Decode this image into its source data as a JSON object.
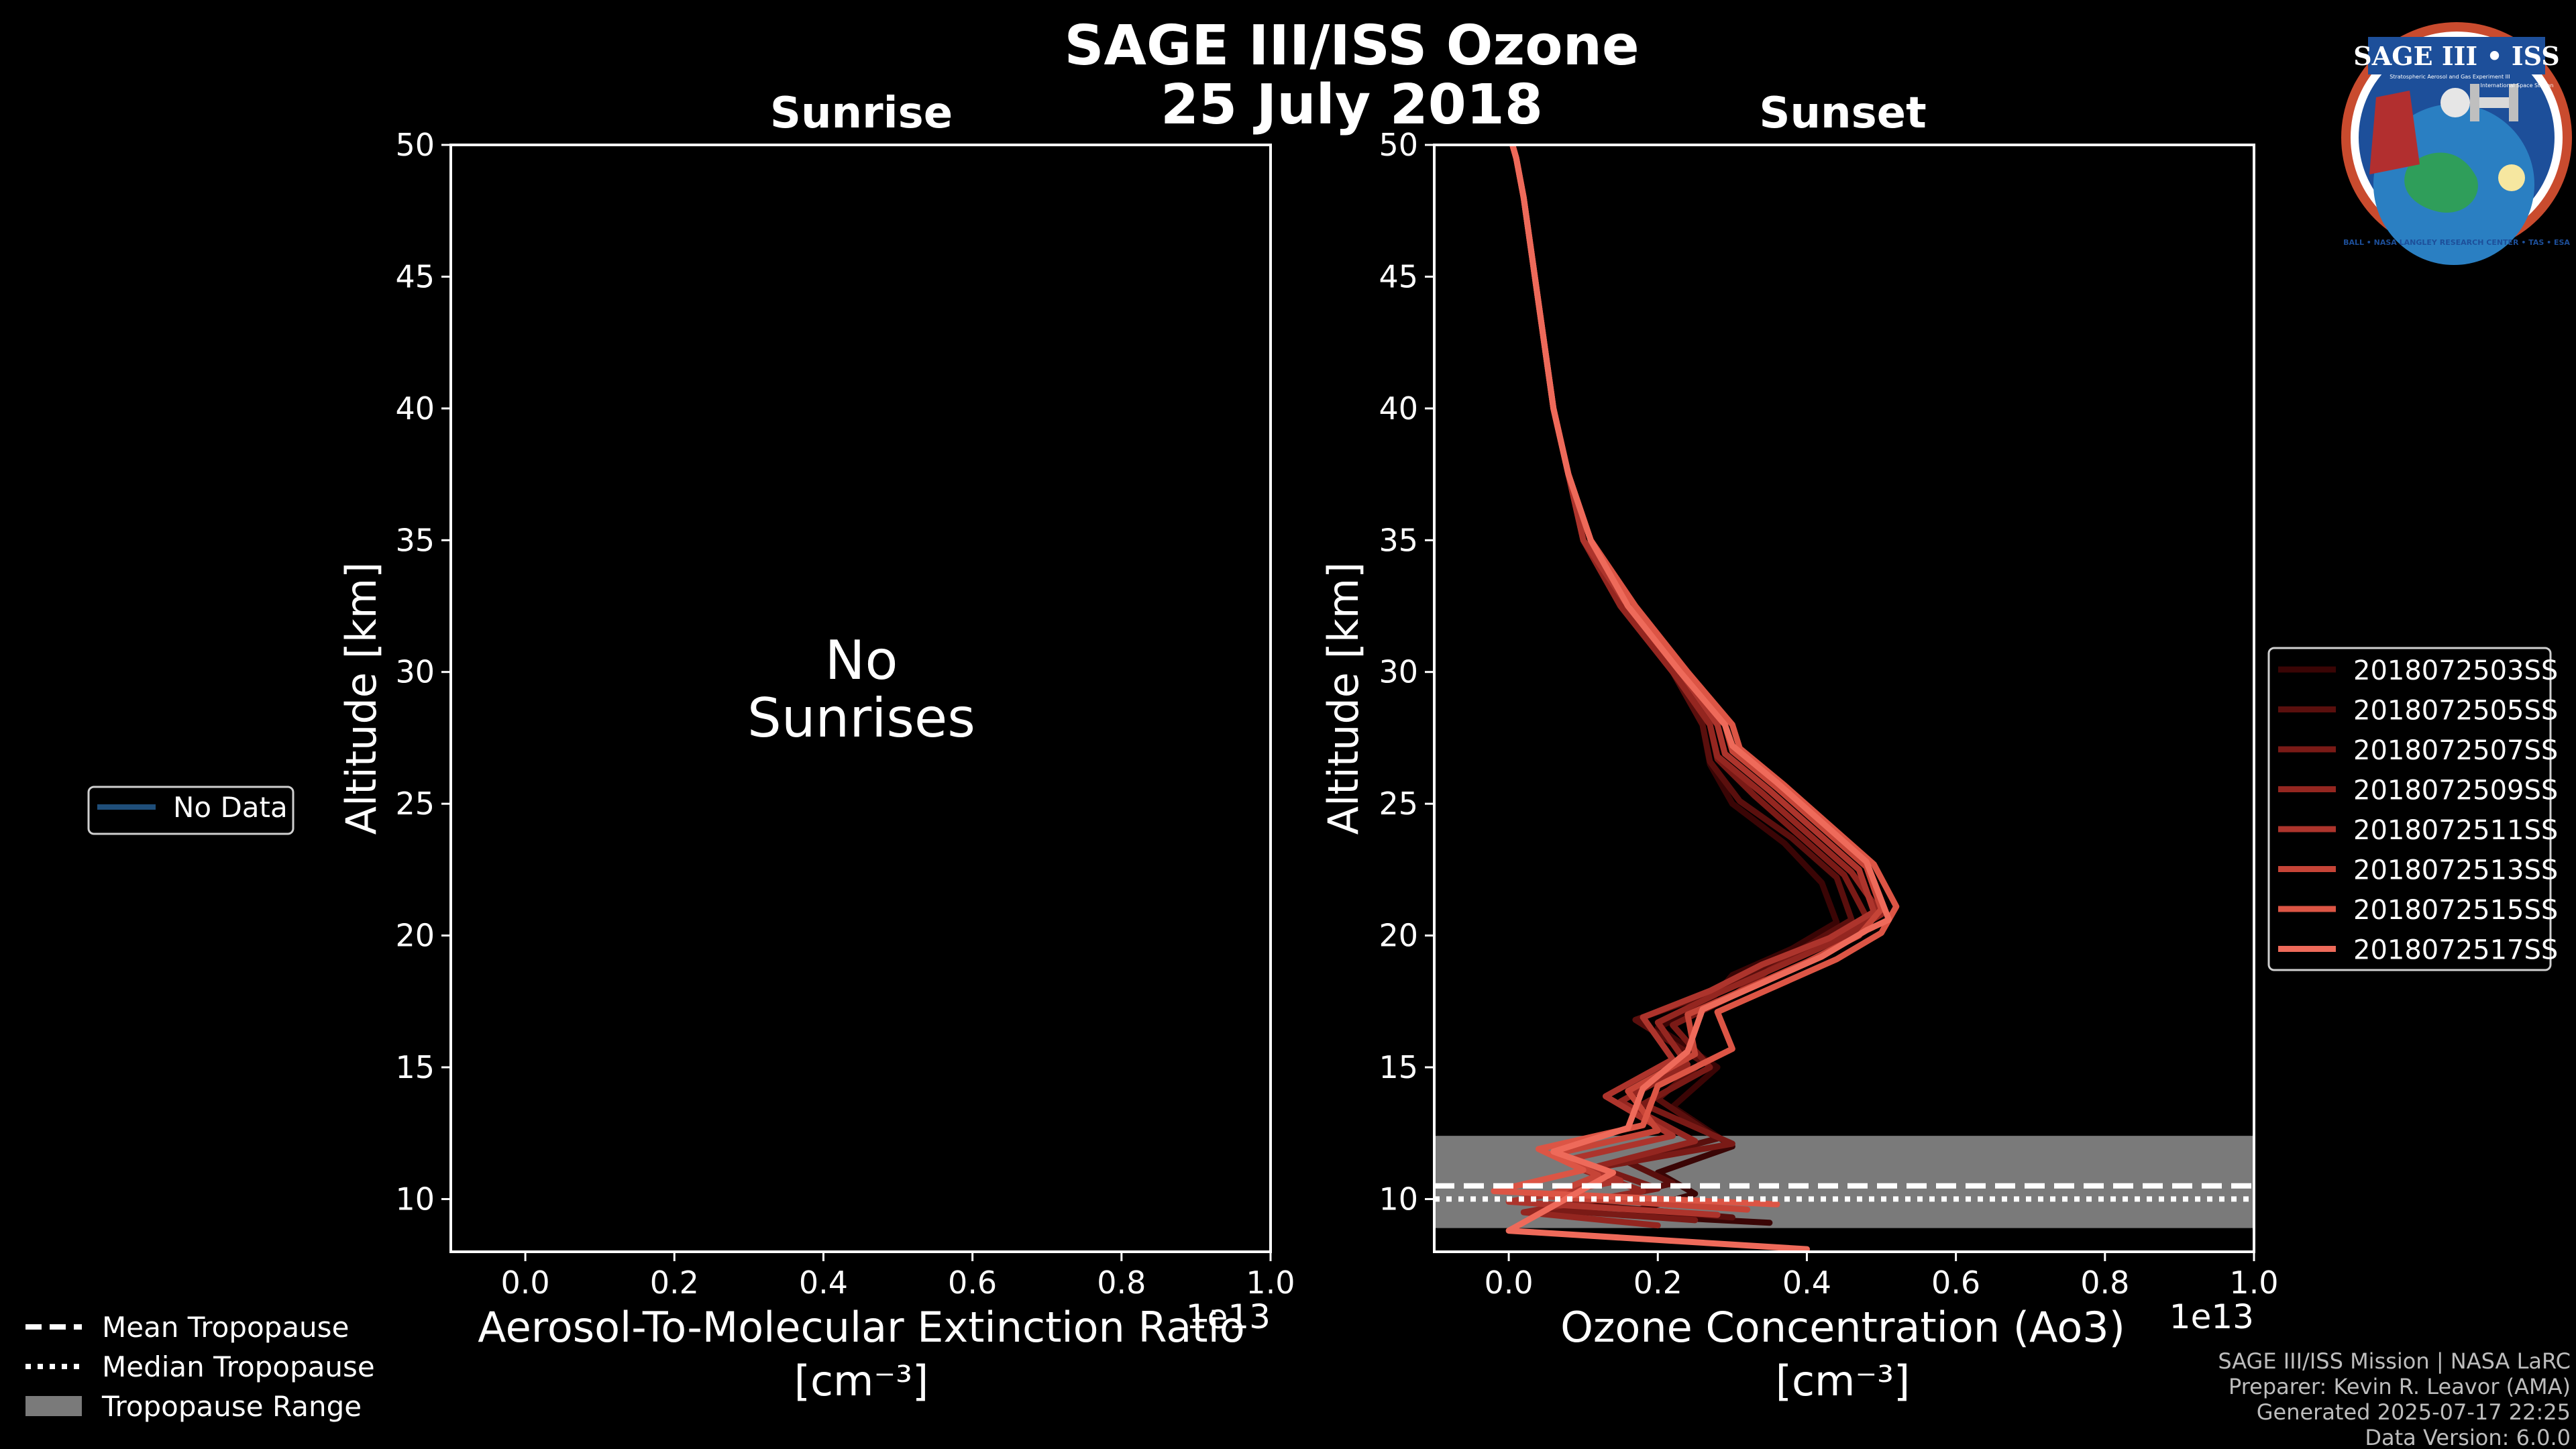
{
  "figure": {
    "title_line1": "SAGE III/ISS Ozone",
    "title_line2": "25 July 2018",
    "exponent_label": "1e13",
    "unit_label": "[cm⁻³]",
    "background": "#000000",
    "foreground": "#ffffff"
  },
  "logo": {
    "text": "SAGE III • ISS",
    "subtitle": "Stratospheric Aerosol and Gas Experiment III",
    "right_caption": "International Space Station",
    "ring_text": "BALL • NASA LANGLEY RESEARCH CENTER • TAS • ESA"
  },
  "left_legend": {
    "no_data_label": "No Data",
    "no_data_color": "#1f4e79"
  },
  "tropopause_legend": {
    "mean_label": "Mean Tropopause",
    "median_label": "Median Tropopause",
    "range_label": "Tropopause Range",
    "range_color": "#7a7a7a"
  },
  "credits": {
    "line1": "SAGE III/ISS Mission | NASA LaRC",
    "line2": "Preparer: Kevin R. Leavor (AMA)",
    "line3": "Generated 2025-07-17 22:25",
    "line4": "Data Version: 6.0.0"
  },
  "chart_data": [
    {
      "type": "line",
      "panel": "sunrise",
      "title": "Sunrise",
      "xlabel": "Aerosol-To-Molecular Extinction Ratio",
      "ylabel": "Altitude [km]",
      "xlim": [
        -0.1,
        1.0
      ],
      "ylim": [
        8,
        50
      ],
      "xticks": [
        0.0,
        0.2,
        0.4,
        0.6,
        0.8,
        1.0
      ],
      "xtick_labels": [
        "0.0",
        "0.2",
        "0.4",
        "0.6",
        "0.8",
        "1.0"
      ],
      "yticks": [
        10,
        15,
        20,
        25,
        30,
        35,
        40,
        45,
        50
      ],
      "ytick_labels": [
        "10",
        "15",
        "20",
        "25",
        "30",
        "35",
        "40",
        "45",
        "50"
      ],
      "x_scale": "1e13",
      "message_line1": "No",
      "message_line2": "Sunrises",
      "series": []
    },
    {
      "type": "line",
      "panel": "sunset",
      "title": "Sunset",
      "xlabel": "Ozone Concentration (Ao3)",
      "ylabel": "Altitude [km]",
      "xlim": [
        -0.1,
        1.0
      ],
      "ylim": [
        8,
        50
      ],
      "xticks": [
        0.0,
        0.2,
        0.4,
        0.6,
        0.8,
        1.0
      ],
      "xtick_labels": [
        "0.0",
        "0.2",
        "0.4",
        "0.6",
        "0.8",
        "1.0"
      ],
      "yticks": [
        10,
        15,
        20,
        25,
        30,
        35,
        40,
        45,
        50
      ],
      "ytick_labels": [
        "10",
        "15",
        "20",
        "25",
        "30",
        "35",
        "40",
        "45",
        "50"
      ],
      "x_scale": "1e13",
      "tropopause": {
        "mean": 10.5,
        "median": 10.0,
        "range": [
          8.9,
          12.4
        ]
      },
      "series": [
        {
          "name": "2018072503SS",
          "color": "#3a0505",
          "x": [
            0.35,
            0.15,
            0.25,
            0.2,
            0.3,
            0.22,
            0.28,
            0.2,
            0.27,
            0.3,
            0.38,
            0.44,
            0.42,
            0.37,
            0.3,
            0.27,
            0.26,
            0.22,
            0.15,
            0.1,
            0.08,
            0.06,
            0.05,
            0.04,
            0.03,
            0.02,
            0.01,
            0.005
          ],
          "y": [
            9.1,
            9.4,
            10.2,
            11.0,
            12.0,
            13.5,
            15.0,
            16.5,
            17.5,
            18.5,
            19.5,
            20.5,
            22.0,
            23.5,
            25.0,
            26.5,
            28,
            30,
            32.5,
            35,
            37.5,
            40,
            42,
            44,
            46,
            48,
            49.5,
            50
          ]
        },
        {
          "name": "2018072505SS",
          "color": "#5a0f0d",
          "x": [
            0.3,
            0.1,
            0.22,
            0.16,
            0.28,
            0.2,
            0.26,
            0.17,
            0.25,
            0.33,
            0.4,
            0.46,
            0.44,
            0.38,
            0.31,
            0.27,
            0.26,
            0.22,
            0.15,
            0.1,
            0.08,
            0.06,
            0.05,
            0.04,
            0.03,
            0.02,
            0.01,
            0.005
          ],
          "y": [
            9.3,
            9.8,
            10.6,
            11.4,
            12.3,
            13.8,
            15.2,
            16.8,
            17.6,
            18.6,
            19.6,
            20.6,
            22.2,
            23.7,
            25.1,
            26.6,
            28,
            30,
            32.5,
            35,
            37.5,
            40,
            42,
            44,
            46,
            48,
            49.5,
            50
          ]
        },
        {
          "name": "2018072507SS",
          "color": "#7a1a16",
          "x": [
            0.25,
            0.05,
            0.2,
            0.12,
            0.3,
            0.18,
            0.27,
            0.22,
            0.3,
            0.35,
            0.42,
            0.48,
            0.45,
            0.39,
            0.33,
            0.28,
            0.27,
            0.22,
            0.15,
            0.1,
            0.08,
            0.06,
            0.05,
            0.04,
            0.03,
            0.02,
            0.01,
            0.005
          ],
          "y": [
            9.2,
            9.6,
            10.4,
            11.2,
            12.1,
            13.6,
            15.0,
            16.6,
            17.7,
            18.7,
            19.7,
            20.7,
            22.3,
            23.8,
            25.3,
            26.7,
            28,
            30,
            32.5,
            35,
            37.5,
            40,
            42,
            44,
            46,
            48,
            49.5,
            50
          ]
        },
        {
          "name": "2018072509SS",
          "color": "#942620",
          "x": [
            0.2,
            0.02,
            0.18,
            0.1,
            0.25,
            0.15,
            0.24,
            0.2,
            0.28,
            0.36,
            0.44,
            0.5,
            0.46,
            0.4,
            0.34,
            0.28,
            0.27,
            0.22,
            0.15,
            0.1,
            0.08,
            0.06,
            0.05,
            0.04,
            0.03,
            0.02,
            0.01,
            0.005
          ],
          "y": [
            9.0,
            9.5,
            10.3,
            11.1,
            12.2,
            13.7,
            15.1,
            16.7,
            17.8,
            18.8,
            19.8,
            20.8,
            22.4,
            23.9,
            25.4,
            26.8,
            28,
            30,
            32.5,
            35,
            37.5,
            40,
            42,
            44,
            46,
            48,
            49.5,
            50
          ]
        },
        {
          "name": "2018072511SS",
          "color": "#ad342c",
          "x": [
            0.28,
            0.0,
            0.15,
            0.08,
            0.22,
            0.13,
            0.22,
            0.18,
            0.27,
            0.34,
            0.43,
            0.49,
            0.47,
            0.41,
            0.35,
            0.29,
            0.28,
            0.23,
            0.16,
            0.1,
            0.08,
            0.06,
            0.05,
            0.04,
            0.03,
            0.02,
            0.01,
            0.005
          ],
          "y": [
            9.4,
            9.9,
            10.7,
            11.5,
            12.4,
            13.9,
            15.3,
            16.9,
            17.9,
            18.9,
            19.9,
            20.9,
            22.5,
            24.0,
            25.5,
            26.9,
            28,
            30,
            32.5,
            35,
            37.5,
            40,
            42,
            44,
            46,
            48,
            49.5,
            50
          ]
        },
        {
          "name": "2018072513SS",
          "color": "#c64437",
          "x": [
            0.32,
            0.05,
            0.12,
            0.06,
            0.2,
            0.16,
            0.25,
            0.24,
            0.32,
            0.4,
            0.47,
            0.5,
            0.48,
            0.42,
            0.36,
            0.3,
            0.29,
            0.23,
            0.16,
            0.11,
            0.08,
            0.06,
            0.05,
            0.04,
            0.03,
            0.02,
            0.01,
            0.005
          ],
          "y": [
            9.6,
            10.1,
            10.9,
            11.7,
            12.6,
            14.1,
            15.5,
            17.0,
            18.0,
            19.0,
            20.0,
            21.0,
            22.6,
            24.1,
            25.6,
            27.0,
            28,
            30,
            32.5,
            35,
            37.5,
            40,
            42,
            44,
            46,
            48,
            49.5,
            50
          ]
        },
        {
          "name": "2018072515SS",
          "color": "#dc5545",
          "x": [
            0.36,
            -0.02,
            0.1,
            0.04,
            0.18,
            0.2,
            0.3,
            0.28,
            0.36,
            0.44,
            0.5,
            0.52,
            0.49,
            0.43,
            0.37,
            0.31,
            0.3,
            0.24,
            0.17,
            0.11,
            0.08,
            0.06,
            0.05,
            0.04,
            0.03,
            0.02,
            0.01,
            0.005
          ],
          "y": [
            9.8,
            10.3,
            11.1,
            11.9,
            12.8,
            14.3,
            15.7,
            17.1,
            18.1,
            19.1,
            20.1,
            21.1,
            22.7,
            24.2,
            25.7,
            27.1,
            28,
            30,
            32.5,
            35,
            37.5,
            40,
            42,
            44,
            46,
            48,
            49.5,
            50
          ]
        },
        {
          "name": "2018072517SS",
          "color": "#ee6a5a",
          "x": [
            0.4,
            0.0,
            0.14,
            0.06,
            0.16,
            0.18,
            0.24,
            0.26,
            0.34,
            0.42,
            0.48,
            0.51,
            0.48,
            0.42,
            0.36,
            0.3,
            0.29,
            0.23,
            0.16,
            0.11,
            0.08,
            0.06,
            0.05,
            0.04,
            0.03,
            0.02,
            0.01,
            0.005
          ],
          "y": [
            8.1,
            8.8,
            11.0,
            11.8,
            12.7,
            14.2,
            15.6,
            17.2,
            18.2,
            19.2,
            20.2,
            20.6,
            22.8,
            24.3,
            25.8,
            27.2,
            28,
            30,
            32.5,
            35,
            37.5,
            40,
            42,
            44,
            46,
            48,
            49.5,
            50
          ]
        }
      ]
    }
  ]
}
